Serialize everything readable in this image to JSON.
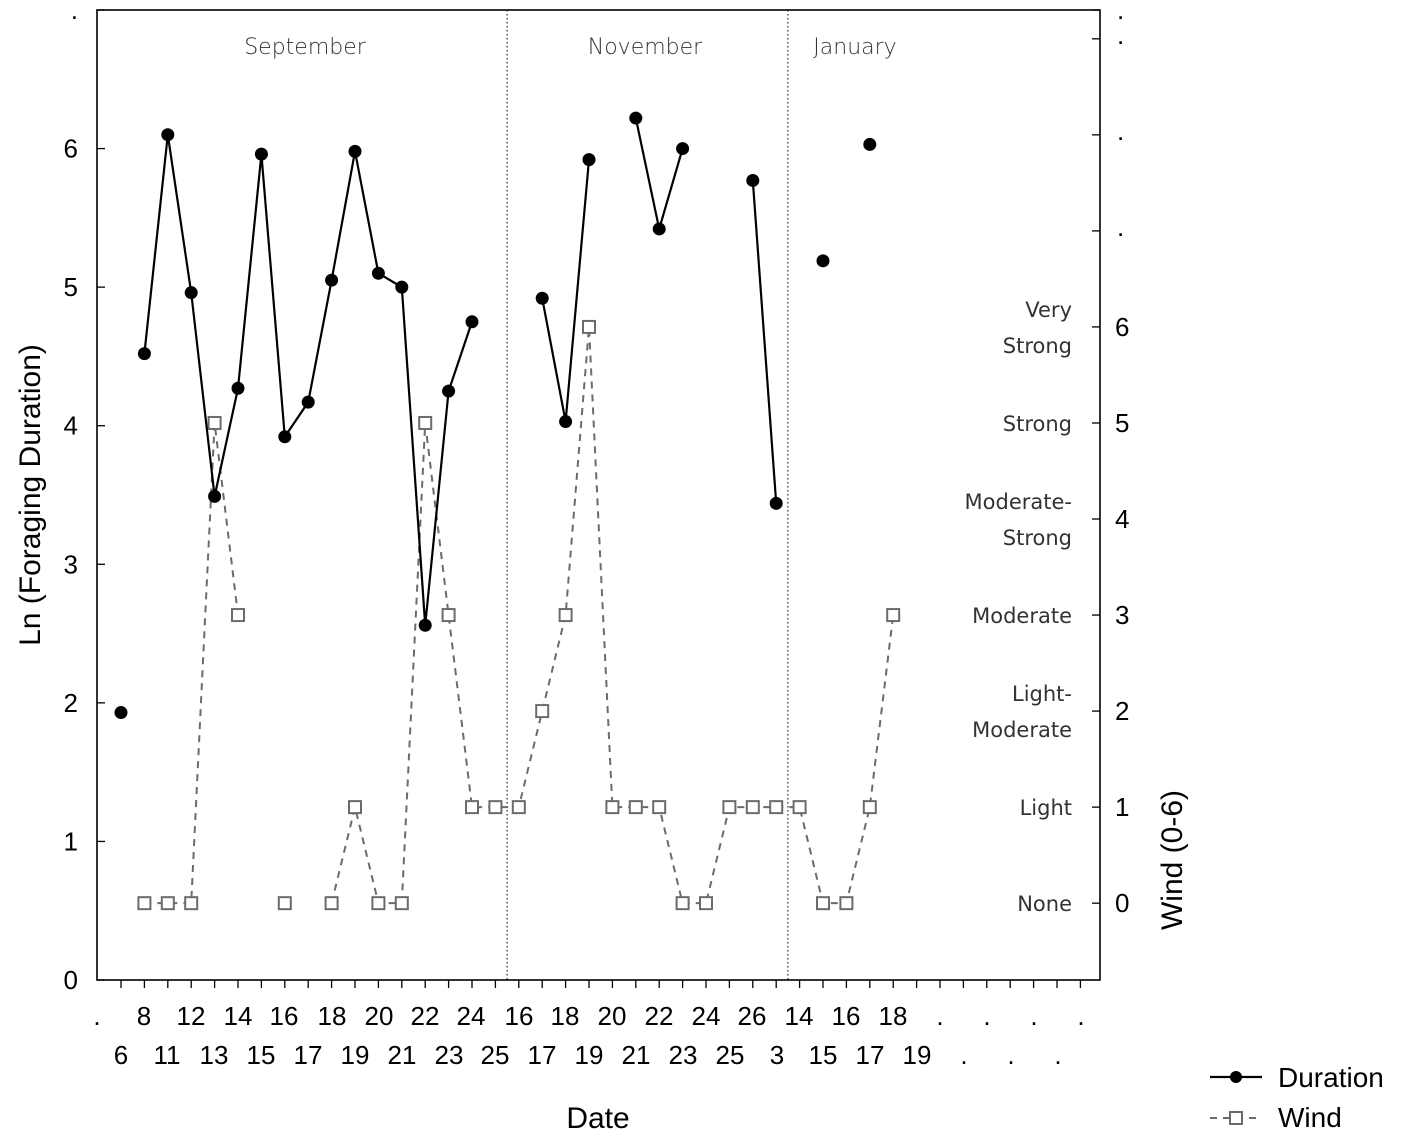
{
  "chart_data": {
    "type": "line",
    "xlabel": "Date",
    "ylabel": "Ln (Foraging Duration)",
    "y2label": "Wind (0-6)",
    "ylim": [
      0,
      7
    ],
    "y2lim": [
      -0.8,
      9.3
    ],
    "yticks": [
      0,
      1,
      2,
      3,
      4,
      5,
      6
    ],
    "y2ticks": [
      0,
      1,
      2,
      3,
      4,
      5,
      6
    ],
    "y2_extra_ticks": [
      ".",
      ".",
      "."
    ],
    "months": [
      "September",
      "November",
      "January"
    ],
    "month_boundaries": [
      17.5,
      29.5
    ],
    "x_top_labels": [
      ".",
      "8",
      "12",
      "14",
      "16",
      "18",
      "20",
      "22",
      "24",
      "16",
      "18",
      "20",
      "22",
      "24",
      "26",
      "14",
      "16",
      "18",
      ".",
      ".",
      ".",
      "."
    ],
    "x_bottom_labels": [
      "6",
      "11",
      "13",
      "15",
      "17",
      "19",
      "21",
      "23",
      "25",
      "17",
      "19",
      "21",
      "23",
      "25",
      "3",
      "15",
      "17",
      "19",
      ".",
      ".",
      "."
    ],
    "wind_levels": [
      {
        "value": 6,
        "label": "Very\nStrong"
      },
      {
        "value": 5,
        "label": "Strong"
      },
      {
        "value": 4,
        "label": "Moderate-\nStrong"
      },
      {
        "value": 3,
        "label": "Moderate"
      },
      {
        "value": 2,
        "label": "Light-\nModerate"
      },
      {
        "value": 1,
        "label": "Light"
      },
      {
        "value": 0,
        "label": "None"
      }
    ],
    "series": [
      {
        "name": "Duration",
        "axis": "left",
        "segments": [
          [
            [
              1,
              1.93
            ]
          ],
          [
            [
              2,
              4.52
            ],
            [
              3,
              6.1
            ],
            [
              4,
              4.96
            ],
            [
              5,
              3.49
            ],
            [
              6,
              4.27
            ],
            [
              7,
              5.96
            ],
            [
              8,
              3.92
            ],
            [
              9,
              4.17
            ],
            [
              10,
              5.05
            ],
            [
              11,
              5.98
            ],
            [
              12,
              5.1
            ],
            [
              13,
              5.0
            ],
            [
              14,
              2.56
            ],
            [
              15,
              4.25
            ],
            [
              16,
              4.75
            ]
          ],
          [
            [
              19,
              4.92
            ],
            [
              20,
              4.03
            ],
            [
              21,
              5.92
            ]
          ],
          [
            [
              23,
              6.22
            ],
            [
              24,
              5.42
            ],
            [
              25,
              6.0
            ]
          ],
          [
            [
              28,
              5.77
            ],
            [
              29,
              3.44
            ]
          ],
          [
            [
              31,
              5.19
            ]
          ],
          [
            [
              33,
              6.03
            ]
          ]
        ]
      },
      {
        "name": "Wind",
        "axis": "right",
        "segments": [
          [
            [
              2,
              0
            ],
            [
              3,
              0
            ],
            [
              4,
              0
            ],
            [
              5,
              5
            ],
            [
              6,
              3
            ]
          ],
          [
            [
              8,
              0
            ]
          ],
          [
            [
              10,
              0
            ],
            [
              11,
              1
            ],
            [
              12,
              0
            ],
            [
              13,
              0
            ],
            [
              14,
              5
            ],
            [
              15,
              3
            ],
            [
              16,
              1
            ],
            [
              17,
              1
            ],
            [
              18,
              1
            ],
            [
              19,
              2
            ],
            [
              20,
              3
            ],
            [
              21,
              6
            ],
            [
              22,
              1
            ],
            [
              23,
              1
            ],
            [
              24,
              1
            ],
            [
              25,
              0
            ],
            [
              26,
              0
            ],
            [
              27,
              1
            ],
            [
              28,
              1
            ],
            [
              29,
              1
            ],
            [
              30,
              1
            ],
            [
              31,
              0
            ],
            [
              32,
              0
            ],
            [
              33,
              1
            ],
            [
              34,
              3
            ]
          ]
        ]
      }
    ],
    "legend": {
      "position": "bottom-right",
      "entries": [
        "Duration",
        "Wind"
      ]
    }
  },
  "colors": {
    "duration": "#000000",
    "wind": "#6b6b6b",
    "frame": "#000000"
  }
}
